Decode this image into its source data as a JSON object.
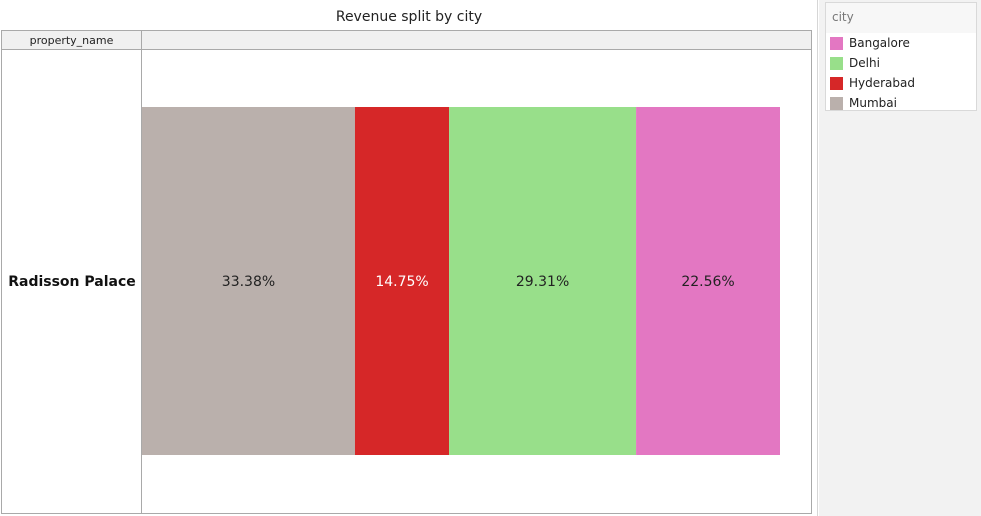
{
  "chart_data": {
    "type": "bar",
    "title": "Revenue split by city",
    "orientation": "horizontal-stacked-100",
    "row_header": "property_name",
    "categories": [
      "Radisson Palace"
    ],
    "series": [
      {
        "name": "Mumbai",
        "color": "#bab0ac",
        "values": [
          33.38
        ],
        "label": "33.38%",
        "label_color": "#222222"
      },
      {
        "name": "Hyderabad",
        "color": "#d62728",
        "values": [
          14.75
        ],
        "label": "14.75%",
        "label_color": "#ffffff"
      },
      {
        "name": "Delhi",
        "color": "#98df8a",
        "values": [
          29.31
        ],
        "label": "29.31%",
        "label_color": "#222222"
      },
      {
        "name": "Bangalore",
        "color": "#e377c2",
        "values": [
          22.56
        ],
        "label": "22.56%",
        "label_color": "#222222"
      }
    ],
    "xlim": [
      0,
      100
    ],
    "legend": {
      "title": "city",
      "placement": "right",
      "items": [
        {
          "name": "Bangalore",
          "color": "#e377c2"
        },
        {
          "name": "Delhi",
          "color": "#98df8a"
        },
        {
          "name": "Hyderabad",
          "color": "#d62728"
        },
        {
          "name": "Mumbai",
          "color": "#bab0ac"
        }
      ]
    }
  }
}
